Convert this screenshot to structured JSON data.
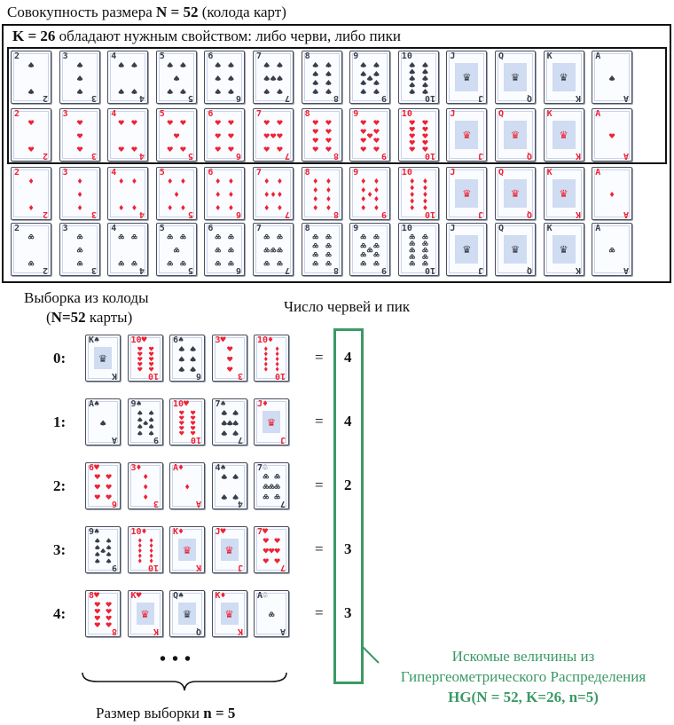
{
  "population_title": {
    "pre": "Совокупность размера ",
    "bold": "N = 52",
    "post": " (колода карт)"
  },
  "property_title": {
    "bold": "K = 26",
    "post": " обладают нужным свойством: либо черви, либо пики"
  },
  "deck": {
    "ranks": [
      "2",
      "3",
      "4",
      "5",
      "6",
      "7",
      "8",
      "9",
      "10",
      "J",
      "Q",
      "K",
      "A"
    ],
    "suits": [
      "♠",
      "♥",
      "♦",
      "♧"
    ]
  },
  "sample_header": {
    "line1": "Выборка из колоды",
    "line2_open": "(",
    "line2_bold": "N=52",
    "line2_post": " карты)"
  },
  "count_header": "Число червей и пик",
  "samples": [
    {
      "label": "0:",
      "cards": [
        "K♠",
        "10♥",
        "6♠",
        "3♥",
        "10♦"
      ],
      "count": "4"
    },
    {
      "label": "1:",
      "cards": [
        "A♠",
        "9♠",
        "10♥",
        "7♠",
        "J♦"
      ],
      "count": "4"
    },
    {
      "label": "2:",
      "cards": [
        "6♥",
        "3♦",
        "A♦",
        "4♠",
        "7♧"
      ],
      "count": "2"
    },
    {
      "label": "3:",
      "cards": [
        "9♠",
        "10♦",
        "K♦",
        "J♥",
        "7♥"
      ],
      "count": "3"
    },
    {
      "label": "4:",
      "cards": [
        "8♥",
        "K♥",
        "Q♠",
        "K♦",
        "A♧"
      ],
      "count": "3"
    }
  ],
  "equals": "=",
  "ellipsis": "• • •",
  "sample_size": {
    "pre": "Размер выборки ",
    "bold": "n = 5"
  },
  "annotation": {
    "line1": "Искомые величины из",
    "line2": "Гипергеометрического Распределения",
    "line3": "HG(N = 52, K=26, n=5)"
  },
  "colors": {
    "accent": "#3a9a66",
    "red": "#ee2233",
    "dark": "#3a3f4a",
    "face": "#cfdcf1"
  }
}
